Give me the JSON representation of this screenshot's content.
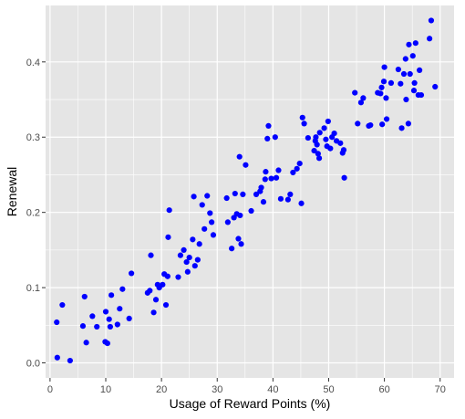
{
  "chart_data": {
    "type": "scatter",
    "title": "",
    "xlabel": "Usage of Reward Points (%)",
    "ylabel": "Renewal",
    "xlim": [
      -0.8,
      72.5
    ],
    "ylim": [
      -0.02,
      0.475
    ],
    "x_ticks": [
      0,
      10,
      20,
      30,
      40,
      50,
      60,
      70
    ],
    "y_ticks": [
      0.0,
      0.1,
      0.2,
      0.3,
      0.4
    ],
    "x_tick_labels": [
      "0",
      "10",
      "20",
      "30",
      "40",
      "50",
      "60",
      "70"
    ],
    "y_tick_labels": [
      "0.0",
      "0.1",
      "0.2",
      "0.3",
      "0.4"
    ],
    "grid": true,
    "panel_background": "#e5e5e5",
    "grid_color": "#ffffff",
    "point_color": "#0000ff",
    "points": [
      [
        1.2,
        0.054
      ],
      [
        1.3,
        0.007
      ],
      [
        2.2,
        0.077
      ],
      [
        3.6,
        0.003
      ],
      [
        5.9,
        0.049
      ],
      [
        6.2,
        0.088
      ],
      [
        6.5,
        0.027
      ],
      [
        7.6,
        0.062
      ],
      [
        8.4,
        0.048
      ],
      [
        9.9,
        0.028
      ],
      [
        10.0,
        0.068
      ],
      [
        10.3,
        0.026
      ],
      [
        10.6,
        0.058
      ],
      [
        10.8,
        0.048
      ],
      [
        11.0,
        0.09
      ],
      [
        12.1,
        0.051
      ],
      [
        12.5,
        0.072
      ],
      [
        13.0,
        0.098
      ],
      [
        14.2,
        0.059
      ],
      [
        14.6,
        0.119
      ],
      [
        17.5,
        0.093
      ],
      [
        17.9,
        0.096
      ],
      [
        18.1,
        0.143
      ],
      [
        18.6,
        0.067
      ],
      [
        19.0,
        0.084
      ],
      [
        19.3,
        0.104
      ],
      [
        19.6,
        0.1
      ],
      [
        20.2,
        0.104
      ],
      [
        20.5,
        0.118
      ],
      [
        20.8,
        0.077
      ],
      [
        21.1,
        0.115
      ],
      [
        21.2,
        0.167
      ],
      [
        21.4,
        0.203
      ],
      [
        23.0,
        0.114
      ],
      [
        23.4,
        0.143
      ],
      [
        24.0,
        0.15
      ],
      [
        24.5,
        0.134
      ],
      [
        24.7,
        0.121
      ],
      [
        25.0,
        0.14
      ],
      [
        25.6,
        0.164
      ],
      [
        25.8,
        0.221
      ],
      [
        26.0,
        0.129
      ],
      [
        26.5,
        0.137
      ],
      [
        26.8,
        0.158
      ],
      [
        27.3,
        0.21
      ],
      [
        27.7,
        0.178
      ],
      [
        28.2,
        0.222
      ],
      [
        28.7,
        0.199
      ],
      [
        29.0,
        0.187
      ],
      [
        29.3,
        0.17
      ],
      [
        31.7,
        0.219
      ],
      [
        31.9,
        0.187
      ],
      [
        32.6,
        0.152
      ],
      [
        33.0,
        0.193
      ],
      [
        33.2,
        0.225
      ],
      [
        33.5,
        0.198
      ],
      [
        33.8,
        0.165
      ],
      [
        34.0,
        0.274
      ],
      [
        34.1,
        0.196
      ],
      [
        34.3,
        0.158
      ],
      [
        34.6,
        0.224
      ],
      [
        35.1,
        0.263
      ],
      [
        36.1,
        0.202
      ],
      [
        37.0,
        0.224
      ],
      [
        37.7,
        0.228
      ],
      [
        37.9,
        0.233
      ],
      [
        38.3,
        0.214
      ],
      [
        38.6,
        0.244
      ],
      [
        38.7,
        0.254
      ],
      [
        39.0,
        0.298
      ],
      [
        39.2,
        0.315
      ],
      [
        39.7,
        0.245
      ],
      [
        40.4,
        0.3
      ],
      [
        40.6,
        0.246
      ],
      [
        41.0,
        0.256
      ],
      [
        41.4,
        0.218
      ],
      [
        42.7,
        0.217
      ],
      [
        43.1,
        0.224
      ],
      [
        43.6,
        0.253
      ],
      [
        44.3,
        0.258
      ],
      [
        44.8,
        0.265
      ],
      [
        45.1,
        0.212
      ],
      [
        45.3,
        0.326
      ],
      [
        45.6,
        0.318
      ],
      [
        46.3,
        0.299
      ],
      [
        47.4,
        0.282
      ],
      [
        47.6,
        0.295
      ],
      [
        47.7,
        0.3
      ],
      [
        47.9,
        0.29
      ],
      [
        48.1,
        0.278
      ],
      [
        48.3,
        0.272
      ],
      [
        48.4,
        0.306
      ],
      [
        49.2,
        0.312
      ],
      [
        49.5,
        0.297
      ],
      [
        49.7,
        0.288
      ],
      [
        49.9,
        0.321
      ],
      [
        50.3,
        0.285
      ],
      [
        50.6,
        0.3
      ],
      [
        51.0,
        0.305
      ],
      [
        51.4,
        0.295
      ],
      [
        52.1,
        0.292
      ],
      [
        52.5,
        0.279
      ],
      [
        52.7,
        0.283
      ],
      [
        52.8,
        0.246
      ],
      [
        54.7,
        0.359
      ],
      [
        55.2,
        0.318
      ],
      [
        55.8,
        0.346
      ],
      [
        56.2,
        0.352
      ],
      [
        57.2,
        0.315
      ],
      [
        57.5,
        0.316
      ],
      [
        58.8,
        0.359
      ],
      [
        59.3,
        0.358
      ],
      [
        59.5,
        0.366
      ],
      [
        59.6,
        0.317
      ],
      [
        59.9,
        0.374
      ],
      [
        60.0,
        0.393
      ],
      [
        60.3,
        0.352
      ],
      [
        60.4,
        0.324
      ],
      [
        61.2,
        0.372
      ],
      [
        62.5,
        0.39
      ],
      [
        62.9,
        0.371
      ],
      [
        63.1,
        0.312
      ],
      [
        63.5,
        0.384
      ],
      [
        63.8,
        0.404
      ],
      [
        63.9,
        0.35
      ],
      [
        64.3,
        0.318
      ],
      [
        64.4,
        0.423
      ],
      [
        64.6,
        0.384
      ],
      [
        65.1,
        0.408
      ],
      [
        65.3,
        0.362
      ],
      [
        65.4,
        0.372
      ],
      [
        65.6,
        0.425
      ],
      [
        66.1,
        0.356
      ],
      [
        66.3,
        0.389
      ],
      [
        66.6,
        0.356
      ],
      [
        68.1,
        0.431
      ],
      [
        68.4,
        0.455
      ],
      [
        69.1,
        0.367
      ]
    ]
  }
}
